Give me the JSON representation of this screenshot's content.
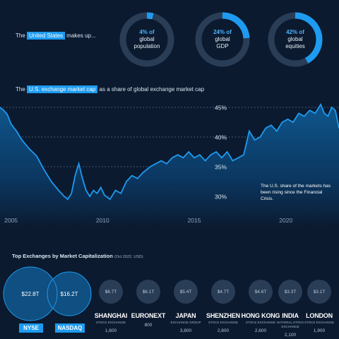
{
  "intro": {
    "pre": "The",
    "highlight": "United States",
    "post": "makes up..."
  },
  "donuts": [
    {
      "pct": "4% of",
      "l1": "global",
      "l2": "population",
      "value": 4
    },
    {
      "pct": "24% of",
      "l1": "global",
      "l2": "GDP",
      "value": 24
    },
    {
      "pct": "42% of",
      "l1": "global",
      "l2": "equities",
      "value": 42
    }
  ],
  "chart_title": {
    "pre": "The",
    "highlight": "U.S. exchange market cap",
    "post": "as a share of global exchange market cap"
  },
  "annotation": "The U.S. share of the markets has been rising since the Financial Crisis.",
  "exchanges_title": "Top Exchanges by Market Capitalization",
  "exchanges_subtitle": "(Oct 2022, USD)",
  "colors": {
    "background": "#0b1a2f",
    "accent": "#1e9bf0",
    "line": "#1e9bf0",
    "circle": "#2a3d56"
  },
  "chart_data": {
    "type": "area",
    "title": "The U.S. exchange market cap as a share of global exchange market cap",
    "xlabel": "",
    "ylabel": "",
    "x_ticks": [
      "2005",
      "2010",
      "2015",
      "2020"
    ],
    "y_ticks": [
      "45%",
      "40%",
      "35%",
      "30%"
    ],
    "xlim": [
      2004.4,
      2022.9
    ],
    "ylim": [
      26,
      47.5
    ],
    "grid": "dotted horizontal",
    "x": [
      2004.4,
      2004.6,
      2004.8,
      2005.0,
      2005.3,
      2005.6,
      2006.0,
      2006.4,
      2006.8,
      2007.2,
      2007.6,
      2007.9,
      2008.1,
      2008.3,
      2008.5,
      2008.7,
      2008.9,
      2009.1,
      2009.3,
      2009.5,
      2009.7,
      2009.9,
      2010.1,
      2010.4,
      2010.7,
      2011.0,
      2011.3,
      2011.6,
      2011.9,
      2012.2,
      2012.6,
      2012.9,
      2013.2,
      2013.5,
      2013.8,
      2014.1,
      2014.4,
      2014.7,
      2015.0,
      2015.3,
      2015.6,
      2015.9,
      2016.2,
      2016.5,
      2016.8,
      2017.1,
      2017.4,
      2017.7,
      2018.0,
      2018.3,
      2018.6,
      2018.9,
      2019.2,
      2019.5,
      2019.8,
      2020.1,
      2020.4,
      2020.7,
      2021.0,
      2021.3,
      2021.6,
      2021.9,
      2022.1,
      2022.3,
      2022.5,
      2022.7,
      2022.9
    ],
    "values": [
      45.0,
      44.5,
      43.8,
      42.2,
      41.0,
      39.5,
      38.0,
      36.8,
      34.5,
      32.5,
      31.0,
      30.0,
      29.5,
      30.5,
      33.5,
      35.5,
      33.0,
      31.0,
      30.0,
      31.0,
      30.5,
      31.5,
      30.2,
      29.5,
      31.0,
      30.5,
      32.5,
      33.5,
      33.0,
      34.0,
      35.0,
      35.5,
      36.0,
      35.5,
      36.5,
      37.0,
      36.5,
      37.5,
      36.5,
      37.0,
      36.0,
      37.0,
      37.5,
      36.5,
      37.5,
      36.0,
      36.5,
      37.0,
      41.0,
      39.5,
      40.0,
      41.5,
      42.0,
      41.0,
      42.5,
      43.0,
      42.5,
      44.0,
      43.5,
      44.5,
      44.0,
      45.5,
      44.0,
      43.5,
      45.0,
      44.5,
      41.5
    ]
  },
  "venn": [
    {
      "name": "NYSE",
      "value": "$22.8T"
    },
    {
      "name": "NASDAQ",
      "value": "$16.2T"
    }
  ],
  "exchanges": [
    {
      "value": "$6.7T",
      "name": "SHANGHAI",
      "sub": "STOCK EXCHANGE",
      "count": "1,600"
    },
    {
      "value": "$6.1T",
      "name": "EURONEXT",
      "sub": "",
      "count": "800"
    },
    {
      "value": "$5.4T",
      "name": "JAPAN",
      "sub": "EXCHANGE GROUP",
      "count": "3,800"
    },
    {
      "value": "$4.7T",
      "name": "SHENZHEN",
      "sub": "STOCK EXCHANGE",
      "count": "2,800"
    },
    {
      "value": "$4.6T",
      "name": "HONG KONG",
      "sub": "STOCK EXCHANGE",
      "count": "2,600"
    },
    {
      "value": "$3.3T",
      "name": "INDIA",
      "sub": "NATIONAL STOCK EXCHANGE",
      "count": "2,100"
    },
    {
      "value": "$3.1T",
      "name": "LONDON",
      "sub": "STOCK EXCHANGE",
      "count": "1,900"
    }
  ]
}
